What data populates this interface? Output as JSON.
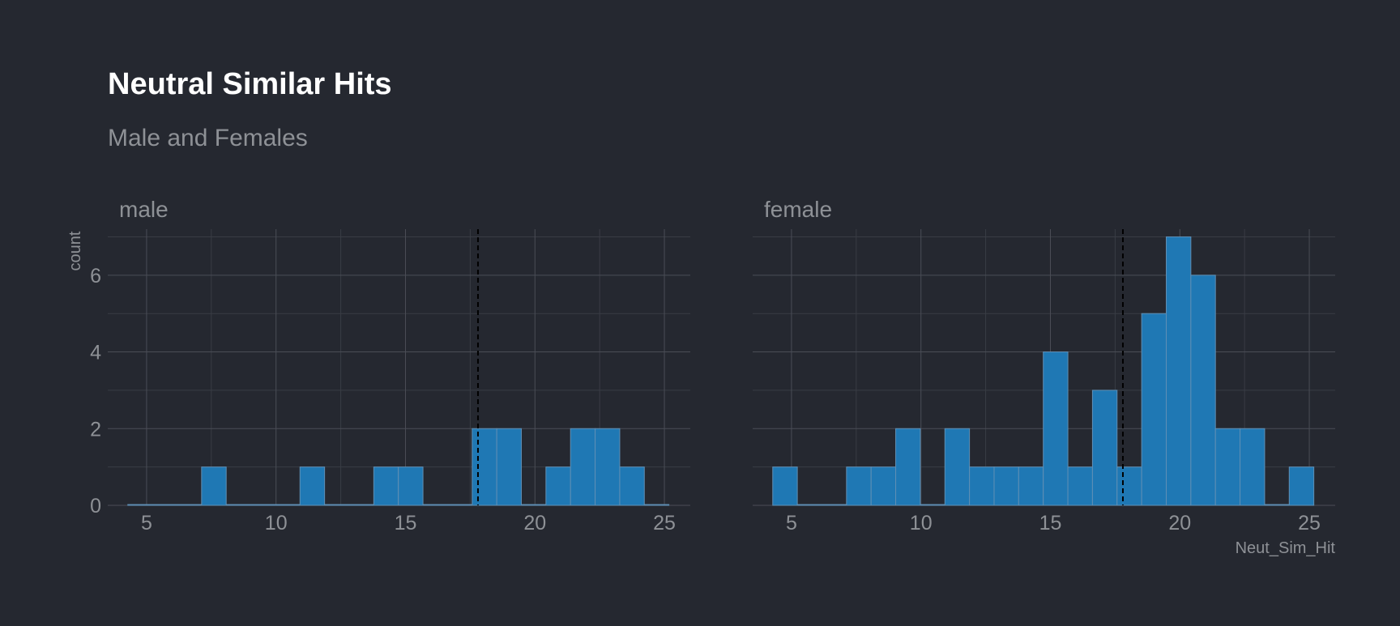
{
  "colors": {
    "background": "#252830",
    "bar_fill": "#1f78b4",
    "mean_line": "#000000"
  },
  "chart_data": {
    "type": "bar",
    "title": "Neutral Similar Hits",
    "subtitle": "Male and Females",
    "xlabel": "Neut_Sim_Hit",
    "ylabel": "count",
    "bin_width": 0.95,
    "xlim": [
      3.5,
      26
    ],
    "ylim": [
      0,
      7.2
    ],
    "x_ticks": [
      5,
      10,
      15,
      20,
      25
    ],
    "y_ticks": [
      0,
      2,
      4,
      6
    ],
    "mean_line_x": 17.8,
    "grid": true,
    "panels": [
      {
        "name": "male",
        "bins": [
          {
            "x": 4.75,
            "count": 0
          },
          {
            "x": 5.7,
            "count": 0
          },
          {
            "x": 6.65,
            "count": 0
          },
          {
            "x": 7.6,
            "count": 1
          },
          {
            "x": 8.55,
            "count": 0
          },
          {
            "x": 9.5,
            "count": 0
          },
          {
            "x": 10.45,
            "count": 0
          },
          {
            "x": 11.4,
            "count": 1
          },
          {
            "x": 12.35,
            "count": 0
          },
          {
            "x": 13.3,
            "count": 0
          },
          {
            "x": 14.25,
            "count": 1
          },
          {
            "x": 15.2,
            "count": 1
          },
          {
            "x": 16.15,
            "count": 0
          },
          {
            "x": 17.1,
            "count": 0
          },
          {
            "x": 18.05,
            "count": 2
          },
          {
            "x": 19.0,
            "count": 2
          },
          {
            "x": 19.95,
            "count": 0
          },
          {
            "x": 20.9,
            "count": 1
          },
          {
            "x": 21.85,
            "count": 2
          },
          {
            "x": 22.8,
            "count": 2
          },
          {
            "x": 23.75,
            "count": 1
          },
          {
            "x": 24.7,
            "count": 0
          }
        ]
      },
      {
        "name": "female",
        "bins": [
          {
            "x": 4.75,
            "count": 1
          },
          {
            "x": 5.7,
            "count": 0
          },
          {
            "x": 6.65,
            "count": 0
          },
          {
            "x": 7.6,
            "count": 1
          },
          {
            "x": 8.55,
            "count": 1
          },
          {
            "x": 9.5,
            "count": 2
          },
          {
            "x": 10.45,
            "count": 0
          },
          {
            "x": 11.4,
            "count": 2
          },
          {
            "x": 12.35,
            "count": 1
          },
          {
            "x": 13.3,
            "count": 1
          },
          {
            "x": 14.25,
            "count": 1
          },
          {
            "x": 15.2,
            "count": 4
          },
          {
            "x": 16.15,
            "count": 1
          },
          {
            "x": 17.1,
            "count": 3
          },
          {
            "x": 18.05,
            "count": 1
          },
          {
            "x": 19.0,
            "count": 5
          },
          {
            "x": 19.95,
            "count": 7
          },
          {
            "x": 20.9,
            "count": 6
          },
          {
            "x": 21.85,
            "count": 2
          },
          {
            "x": 22.8,
            "count": 2
          },
          {
            "x": 23.75,
            "count": 0
          },
          {
            "x": 24.7,
            "count": 1
          }
        ]
      }
    ]
  }
}
